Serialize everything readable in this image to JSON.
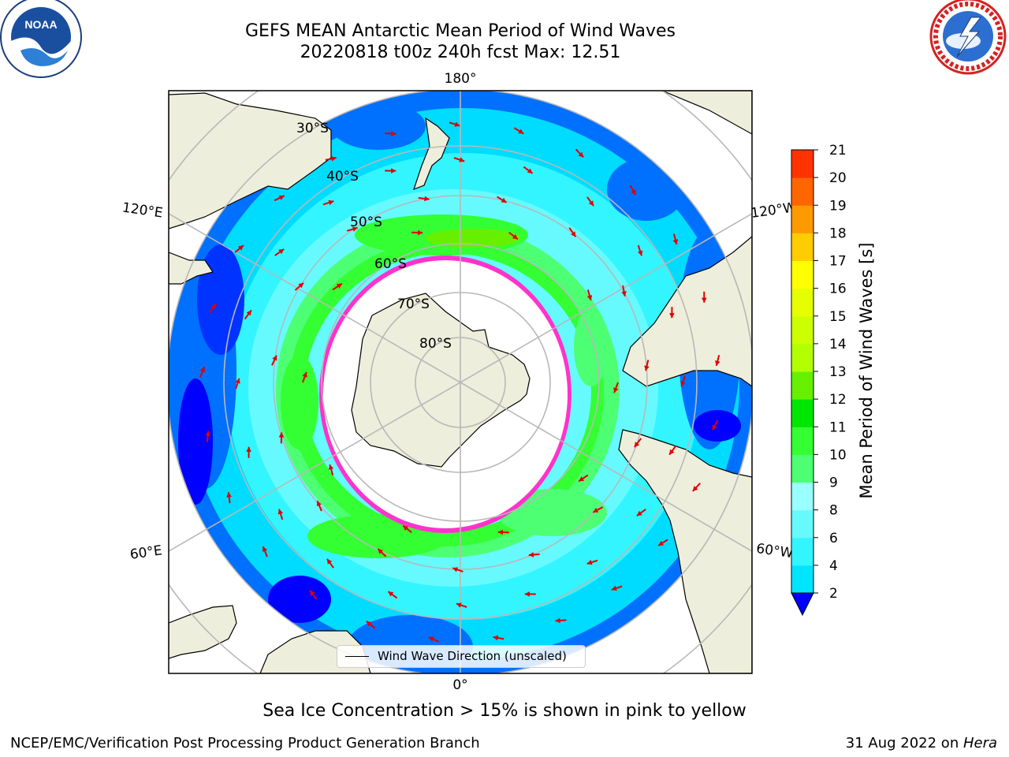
{
  "header": {
    "title_line1": "GEFS MEAN Antarctic Mean Period of Wind Waves",
    "title_line2": "20220818 t00z 240h fcst   Max: 12.51"
  },
  "logos": {
    "left": {
      "icon": "noaa-logo-icon",
      "text": "NOAA"
    },
    "right": {
      "icon": "nws-logo-icon",
      "text": "NATIONAL WEATHER SERVICE"
    }
  },
  "map": {
    "projection": "south-polar-stereographic",
    "longitude_labels": {
      "top": "180°",
      "bottom": "0°",
      "upper_left": "120°E",
      "lower_left": "60°E",
      "upper_right": "120°W",
      "lower_right": "60°W"
    },
    "latitude_labels": [
      "30°S",
      "40°S",
      "50°S",
      "60°S",
      "70°S",
      "80°S"
    ],
    "legend_label": "Wind Wave Direction (unscaled)"
  },
  "colorbar": {
    "label": "Mean Period of Wind Waves [s]",
    "ticks": [
      "2",
      "4",
      "6",
      "8",
      "9",
      "10",
      "11",
      "12",
      "13",
      "14",
      "15",
      "16",
      "17",
      "18",
      "19",
      "20",
      "21"
    ],
    "colors": [
      "#0070ff",
      "#00e5ff",
      "#33f5ff",
      "#66faff",
      "#99ffff",
      "#4dff73",
      "#33ff33",
      "#00e600",
      "#66f000",
      "#b3ff00",
      "#ccff00",
      "#e6ff00",
      "#ffff00",
      "#ffcc00",
      "#ff9900",
      "#ff6600",
      "#ff3300",
      "#ff0000"
    ],
    "extend_color": "#0000ff"
  },
  "caption": "Sea Ice Concentration > 15% is shown in pink to yellow",
  "footer": {
    "left": "NCEP/EMC/Verification Post Processing Product Generation Branch",
    "right_date": "31 Aug 2022 on ",
    "right_host": "Hera"
  }
}
